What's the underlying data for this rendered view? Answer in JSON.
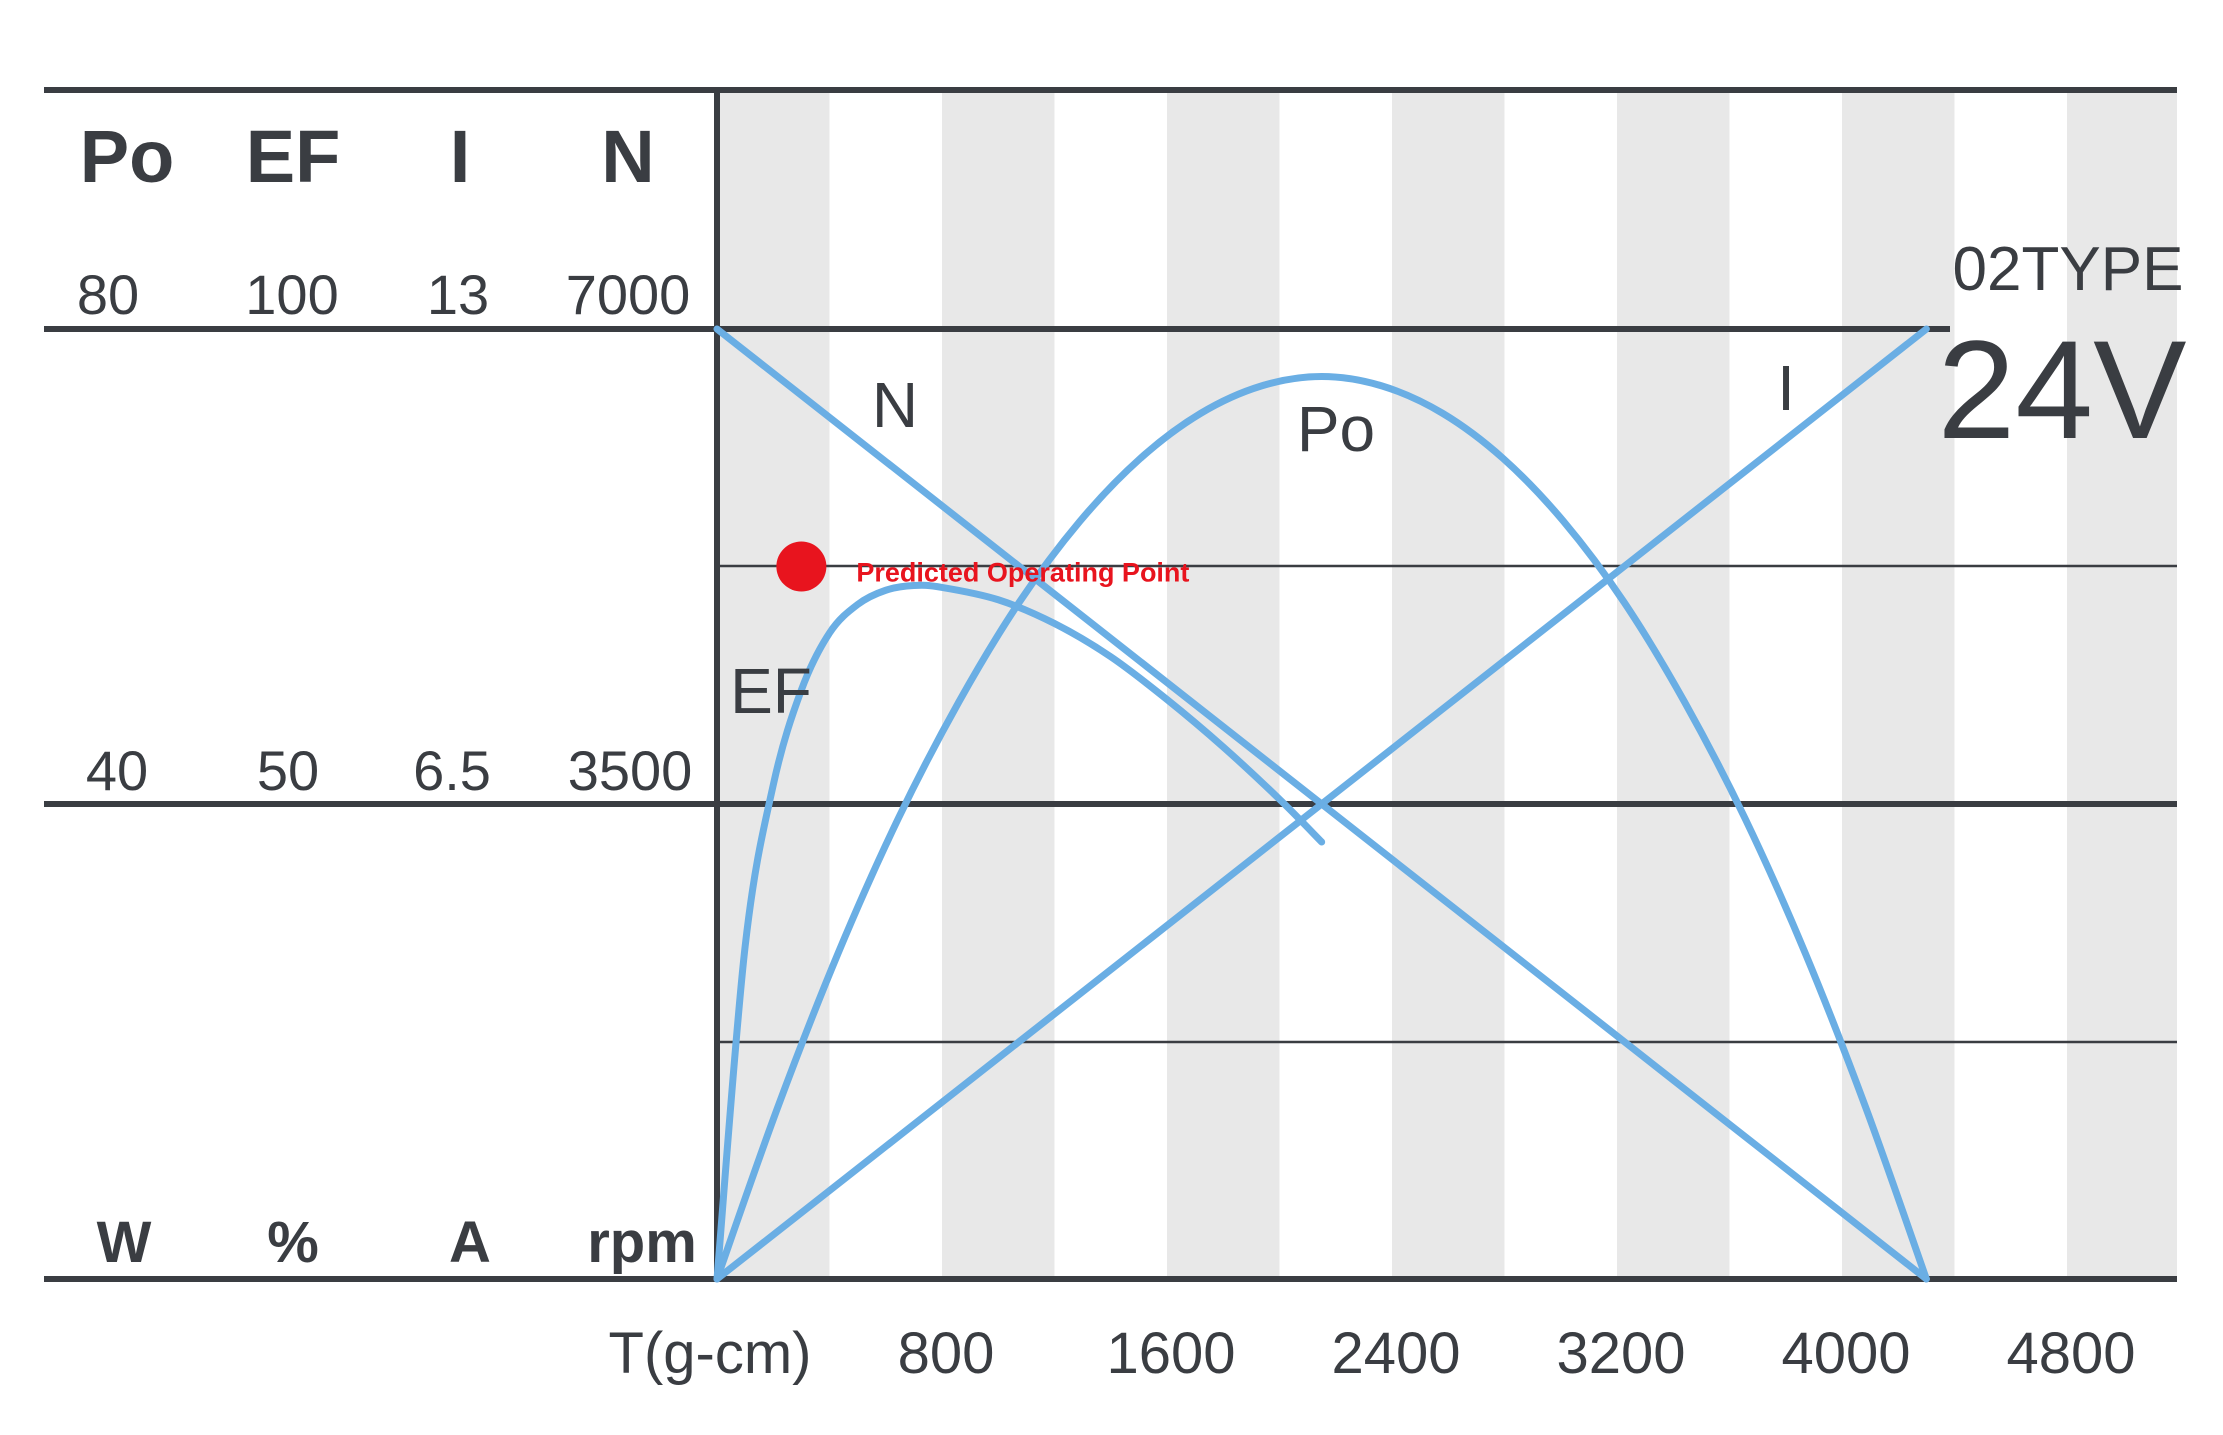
{
  "chart_data": {
    "type": "line",
    "model": "02TYPE",
    "voltage": "24V",
    "xlabel": "T(g-cm)",
    "x_ticks": [
      "800",
      "1600",
      "2400",
      "3200",
      "4000",
      "4800"
    ],
    "xlim": [
      0,
      5200
    ],
    "grid": true,
    "axes": [
      {
        "name": "Po",
        "unit": "W",
        "ticks": [
          "80",
          "40"
        ],
        "max": 80
      },
      {
        "name": "EF",
        "unit": "%",
        "ticks": [
          "100",
          "50"
        ],
        "max": 100
      },
      {
        "name": "I",
        "unit": "A",
        "ticks": [
          "13",
          "6.5"
        ],
        "max": 13
      },
      {
        "name": "N",
        "unit": "rpm",
        "ticks": [
          "7000",
          "3500"
        ],
        "max": 7000
      }
    ],
    "series": [
      {
        "name": "N",
        "x": [
          0,
          4300
        ],
        "y": [
          7000,
          0
        ]
      },
      {
        "name": "I",
        "x": [
          0,
          4300
        ],
        "y": [
          0,
          13
        ]
      },
      {
        "name": "Po",
        "x": [
          0,
          215,
          430,
          645,
          860,
          1075,
          1290,
          1505,
          1720,
          1935,
          2150,
          2365,
          2580,
          2795,
          3010,
          3225,
          3440,
          3655,
          3870,
          4085,
          4300
        ],
        "y": [
          0,
          14.4,
          27.4,
          38.8,
          48.6,
          57.0,
          63.8,
          69.1,
          72.9,
          75.2,
          76.0,
          75.2,
          72.9,
          69.1,
          63.8,
          57.0,
          48.6,
          38.8,
          27.4,
          14.4,
          0
        ]
      },
      {
        "name": "EF",
        "x": [
          0,
          100,
          200,
          300,
          400,
          500,
          600,
          700,
          800,
          1000,
          1200,
          1400,
          1600,
          1800,
          2000,
          2150
        ],
        "y": [
          0,
          35,
          52,
          62,
          68,
          71,
          72.5,
          73,
          72.8,
          71.5,
          69,
          65.5,
          61,
          56,
          50.5,
          46
        ]
      }
    ],
    "annotation": {
      "label": "Predicted Operating Point",
      "x": 300,
      "y": 5250,
      "axis": "N",
      "color": "#e8141e"
    }
  },
  "colors": {
    "curve": "#6aaee4",
    "axis": "#3a3d42",
    "band": "#e8e8e8",
    "grid": "#3a3d42"
  }
}
